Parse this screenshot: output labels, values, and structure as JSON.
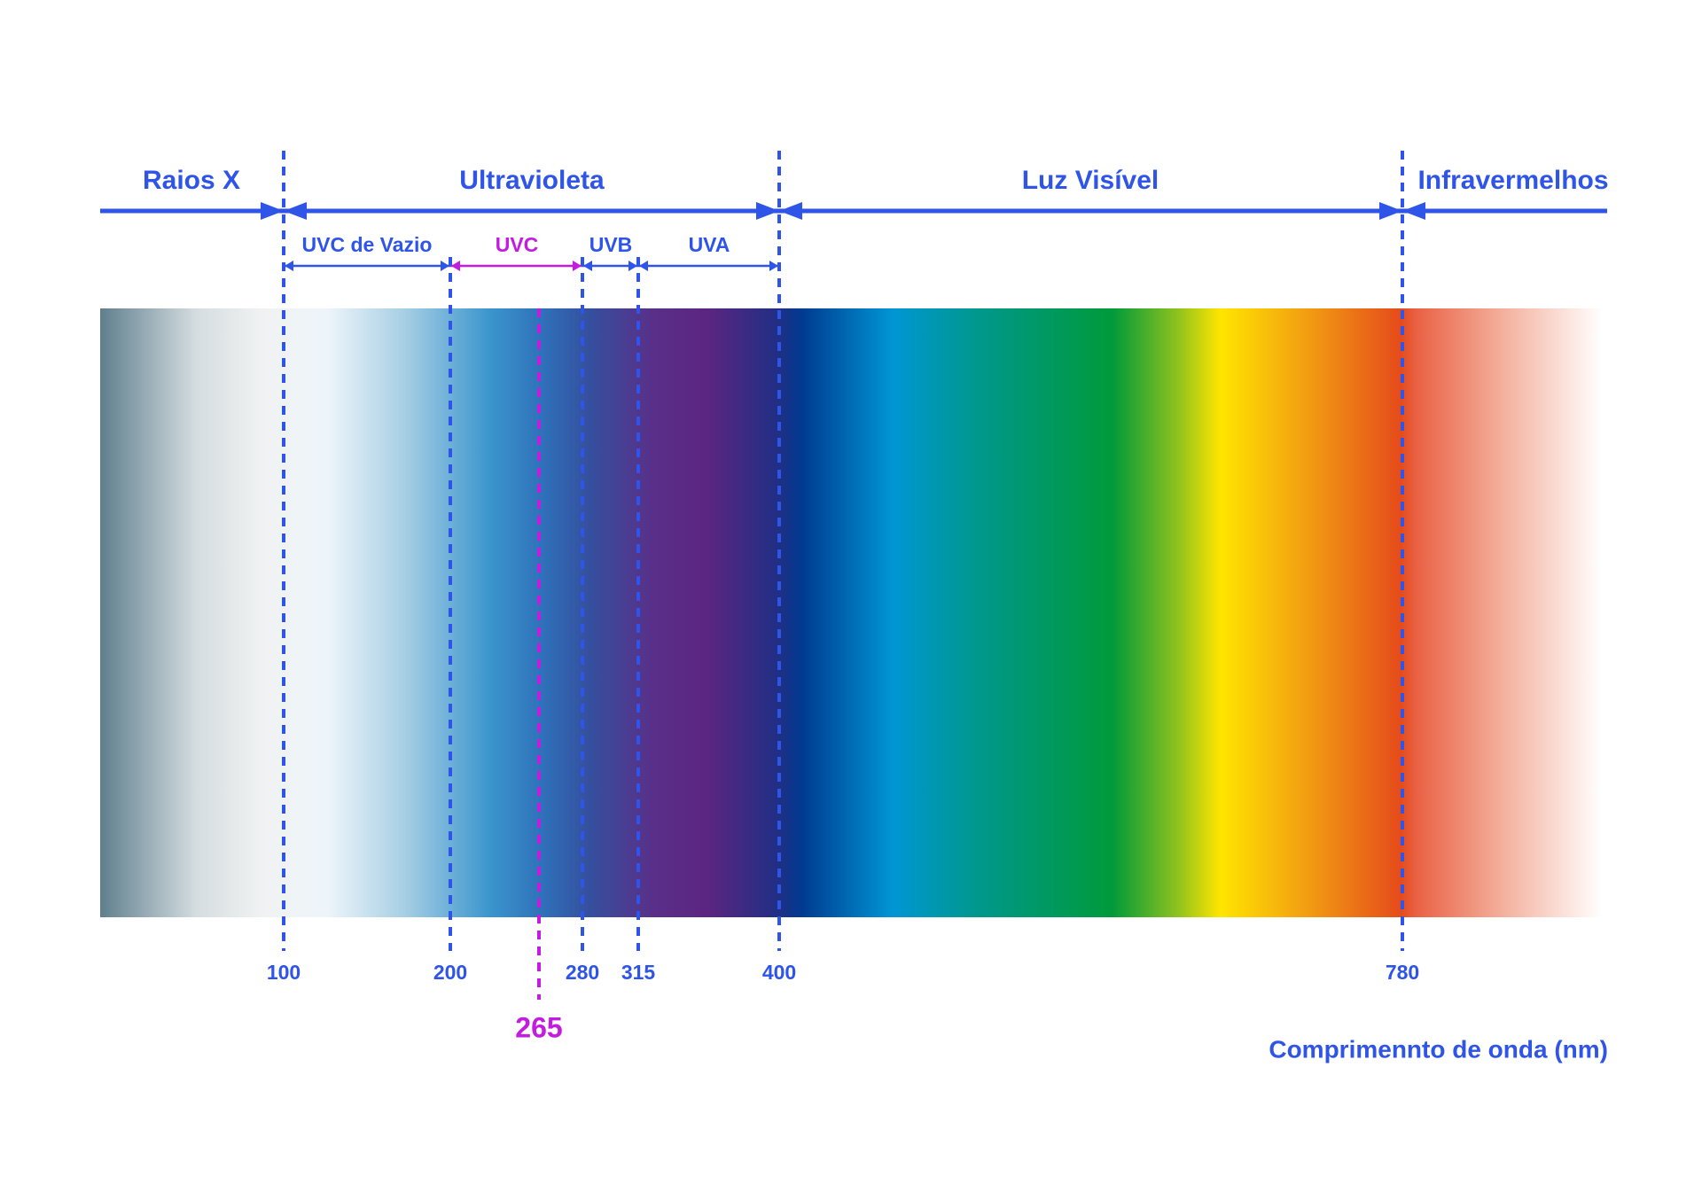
{
  "regions": [
    {
      "label": "Raios X"
    },
    {
      "label": "Ultravioleta"
    },
    {
      "label": "Luz Visível"
    },
    {
      "label": "Infravermelhos"
    }
  ],
  "uv_bands": [
    {
      "label": "UVC de Vazio"
    },
    {
      "label": "UVC"
    },
    {
      "label": "UVB"
    },
    {
      "label": "UVA"
    }
  ],
  "wavelength_marks": [
    "100",
    "200",
    "280",
    "315",
    "400",
    "780"
  ],
  "highlight": "265",
  "axis_label": "Comprimennto de onda (nm)"
}
